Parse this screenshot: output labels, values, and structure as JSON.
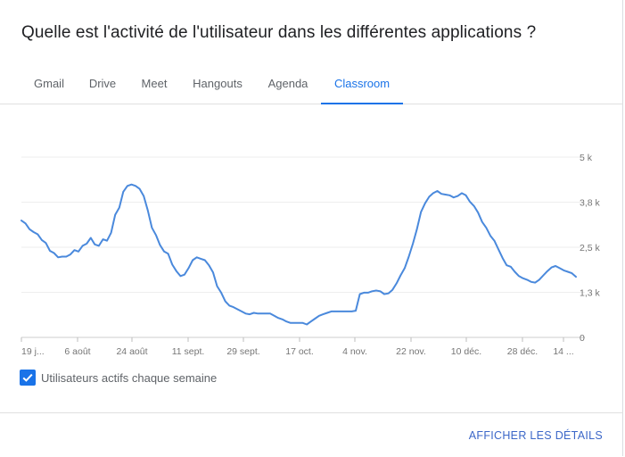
{
  "card": {
    "title": "Quelle est l'activité de l'utilisateur dans les différentes applications ?"
  },
  "tabs": [
    {
      "label": "Gmail",
      "active": false
    },
    {
      "label": "Drive",
      "active": false
    },
    {
      "label": "Meet",
      "active": false
    },
    {
      "label": "Hangouts",
      "active": false
    },
    {
      "label": "Agenda",
      "active": false
    },
    {
      "label": "Classroom",
      "active": true
    }
  ],
  "colors": {
    "accent": "#1a73e8",
    "line": "#4a89dc",
    "grid": "#eeeeee",
    "axis_text": "#757575"
  },
  "chart_data": {
    "type": "line",
    "x_tick_labels": [
      "19 j...",
      "6 août",
      "24 août",
      "11 sept.",
      "29 sept.",
      "17 oct.",
      "4 nov.",
      "22 nov.",
      "10 déc.",
      "28 déc.",
      "14 ..."
    ],
    "y_tick_labels": [
      "0",
      "1,3 k",
      "2,5 k",
      "3,8 k",
      "5 k"
    ],
    "ylim": [
      0,
      5000
    ],
    "grid": true,
    "y_axis_side": "right",
    "series": [
      {
        "name": "Utilisateurs actifs chaque semaine",
        "values": [
          3240,
          3160,
          3000,
          2920,
          2860,
          2700,
          2620,
          2400,
          2340,
          2220,
          2240,
          2240,
          2300,
          2420,
          2380,
          2540,
          2600,
          2760,
          2580,
          2540,
          2720,
          2680,
          2900,
          3400,
          3600,
          4040,
          4200,
          4240,
          4200,
          4120,
          3920,
          3520,
          3040,
          2840,
          2560,
          2380,
          2320,
          2020,
          1840,
          1700,
          1740,
          1920,
          2140,
          2220,
          2180,
          2140,
          2000,
          1800,
          1420,
          1240,
          1000,
          880,
          840,
          780,
          720,
          660,
          640,
          680,
          660,
          660,
          660,
          660,
          600,
          540,
          500,
          440,
          400,
          400,
          400,
          400,
          360,
          440,
          520,
          600,
          640,
          680,
          720,
          720,
          720,
          720,
          720,
          720,
          740,
          1200,
          1240,
          1240,
          1280,
          1300,
          1280,
          1200,
          1220,
          1320,
          1500,
          1720,
          1920,
          2240,
          2600,
          3000,
          3480,
          3720,
          3900,
          4000,
          4060,
          3980,
          3960,
          3940,
          3880,
          3920,
          4000,
          3940,
          3760,
          3640,
          3460,
          3200,
          3040,
          2820,
          2680,
          2440,
          2200,
          2000,
          1960,
          1820,
          1700,
          1640,
          1600,
          1540,
          1520,
          1600,
          1720,
          1840,
          1940,
          1980,
          1920,
          1860,
          1820,
          1780,
          1680
        ]
      }
    ]
  },
  "legend": {
    "label": "Utilisateurs actifs chaque semaine",
    "checked": true
  },
  "footer": {
    "details_label": "AFFICHER LES DÉTAILS"
  }
}
